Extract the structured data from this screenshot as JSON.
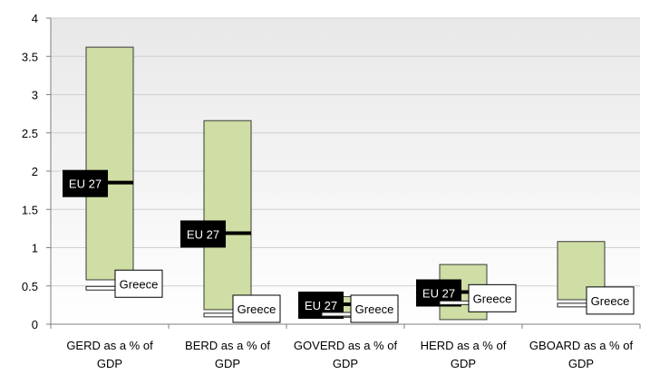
{
  "chart_data": {
    "type": "bar",
    "categories": [
      [
        "GERD as a % of",
        "GDP"
      ],
      [
        "BERD as a % of",
        "GDP"
      ],
      [
        "GOVERD as a % of",
        "GDP"
      ],
      [
        "HERD as a % of",
        "GDP"
      ],
      [
        "GBOARD as a % of",
        "GDP"
      ]
    ],
    "ranges": [
      {
        "min": 0.58,
        "max": 3.62
      },
      {
        "min": 0.19,
        "max": 2.66
      },
      {
        "min": 0.09,
        "max": 0.36
      },
      {
        "min": 0.06,
        "max": 0.78
      },
      {
        "min": 0.32,
        "max": 1.08
      }
    ],
    "eu27": [
      1.85,
      1.19,
      0.26,
      0.42,
      null
    ],
    "greece": [
      0.47,
      0.12,
      0.13,
      0.28,
      0.25
    ],
    "eu_label": "EU 27",
    "greece_label": "Greece",
    "yticks": [
      "0",
      "0.5",
      "1",
      "1.5",
      "2",
      "2.5",
      "3",
      "3.5",
      "4"
    ],
    "ylim": [
      0,
      4
    ],
    "grid": true,
    "colors": {
      "range_fill": "#cedea4",
      "range_stroke": "#3a3a3a",
      "eu_label_bg": "#000000",
      "eu_label_text": "#ffffff",
      "greece_label_bg": "#ffffff",
      "gridline": "#d0d0d0",
      "plot_bg_top": "#e8e8e8",
      "plot_bg_bottom": "#ffffff"
    }
  }
}
